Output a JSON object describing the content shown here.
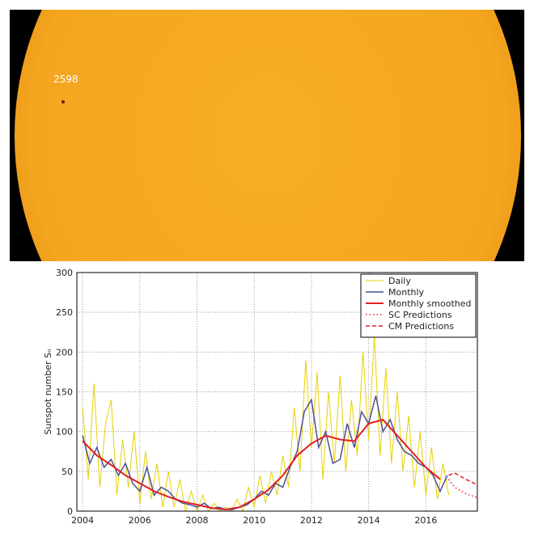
{
  "image": {
    "region_label": "2598"
  },
  "chart_data": {
    "type": "line",
    "y_label": "Sunspot number Sₙ",
    "xlim": [
      2003.8,
      2017.8
    ],
    "xticks": [
      2004,
      2006,
      2008,
      2010,
      2012,
      2014,
      2016
    ],
    "ylim": [
      0,
      300
    ],
    "yticks": [
      0,
      50,
      100,
      150,
      200,
      250,
      300
    ],
    "grid": true,
    "legend": "upper right",
    "series": [
      {
        "name": "Daily",
        "color": "#e8d000",
        "style": "solid",
        "width": 1,
        "x": [
          2004.0,
          2004.2,
          2004.4,
          2004.6,
          2004.8,
          2005.0,
          2005.2,
          2005.4,
          2005.6,
          2005.8,
          2006.0,
          2006.2,
          2006.4,
          2006.6,
          2006.8,
          2007.0,
          2007.2,
          2007.4,
          2007.6,
          2007.8,
          2008.0,
          2008.2,
          2008.4,
          2008.6,
          2008.8,
          2009.0,
          2009.2,
          2009.4,
          2009.6,
          2009.8,
          2010.0,
          2010.2,
          2010.4,
          2010.6,
          2010.8,
          2011.0,
          2011.2,
          2011.4,
          2011.6,
          2011.8,
          2012.0,
          2012.2,
          2012.4,
          2012.6,
          2012.8,
          2013.0,
          2013.2,
          2013.4,
          2013.6,
          2013.8,
          2014.0,
          2014.2,
          2014.4,
          2014.6,
          2014.8,
          2015.0,
          2015.2,
          2015.4,
          2015.6,
          2015.8,
          2016.0,
          2016.2,
          2016.4,
          2016.6,
          2016.8
        ],
        "values": [
          130,
          40,
          160,
          30,
          110,
          140,
          20,
          90,
          30,
          100,
          10,
          75,
          15,
          60,
          5,
          50,
          5,
          40,
          0,
          25,
          0,
          20,
          0,
          10,
          0,
          5,
          0,
          15,
          0,
          30,
          5,
          45,
          10,
          50,
          20,
          70,
          30,
          130,
          50,
          190,
          80,
          175,
          40,
          150,
          60,
          170,
          50,
          140,
          70,
          200,
          90,
          220,
          70,
          180,
          60,
          150,
          50,
          120,
          30,
          100,
          20,
          80,
          15,
          60,
          20
        ]
      },
      {
        "name": "Monthly",
        "color": "#4a4f9a",
        "style": "solid",
        "width": 1.5,
        "x": [
          2004.0,
          2004.25,
          2004.5,
          2004.75,
          2005.0,
          2005.25,
          2005.5,
          2005.75,
          2006.0,
          2006.25,
          2006.5,
          2006.75,
          2007.0,
          2007.25,
          2007.5,
          2007.75,
          2008.0,
          2008.25,
          2008.5,
          2008.75,
          2009.0,
          2009.25,
          2009.5,
          2009.75,
          2010.0,
          2010.25,
          2010.5,
          2010.75,
          2011.0,
          2011.25,
          2011.5,
          2011.75,
          2012.0,
          2012.25,
          2012.5,
          2012.75,
          2013.0,
          2013.25,
          2013.5,
          2013.75,
          2014.0,
          2014.25,
          2014.5,
          2014.75,
          2015.0,
          2015.25,
          2015.5,
          2015.75,
          2016.0,
          2016.25,
          2016.5,
          2016.75
        ],
        "values": [
          95,
          60,
          80,
          55,
          65,
          45,
          60,
          35,
          25,
          55,
          20,
          30,
          25,
          15,
          10,
          8,
          5,
          10,
          3,
          5,
          2,
          2,
          5,
          8,
          15,
          25,
          20,
          35,
          30,
          55,
          75,
          125,
          140,
          80,
          100,
          60,
          65,
          110,
          80,
          125,
          110,
          145,
          100,
          115,
          90,
          75,
          70,
          60,
          55,
          45,
          25,
          45
        ]
      },
      {
        "name": "Monthly smoothed",
        "color": "#e02020",
        "style": "solid",
        "width": 2,
        "x": [
          2004.0,
          2004.5,
          2005.0,
          2005.5,
          2006.0,
          2006.5,
          2007.0,
          2007.5,
          2008.0,
          2008.5,
          2009.0,
          2009.5,
          2010.0,
          2010.5,
          2011.0,
          2011.5,
          2012.0,
          2012.5,
          2013.0,
          2013.5,
          2014.0,
          2014.5,
          2015.0,
          2015.5,
          2016.0,
          2016.5
        ],
        "values": [
          88,
          70,
          58,
          45,
          35,
          25,
          18,
          12,
          8,
          4,
          2,
          5,
          15,
          27,
          45,
          70,
          85,
          95,
          90,
          88,
          110,
          115,
          95,
          75,
          55,
          40
        ]
      },
      {
        "name": "SC Predictions",
        "color": "#e02020",
        "style": "dotted",
        "width": 1.5,
        "x": [
          2016.8,
          2017.0,
          2017.4,
          2017.8
        ],
        "values": [
          40,
          30,
          22,
          17
        ]
      },
      {
        "name": "CM Predictions",
        "color": "#e02020",
        "style": "dashed",
        "width": 1.5,
        "x": [
          2016.8,
          2017.0,
          2017.4,
          2017.8
        ],
        "values": [
          45,
          48,
          40,
          33
        ]
      }
    ]
  }
}
